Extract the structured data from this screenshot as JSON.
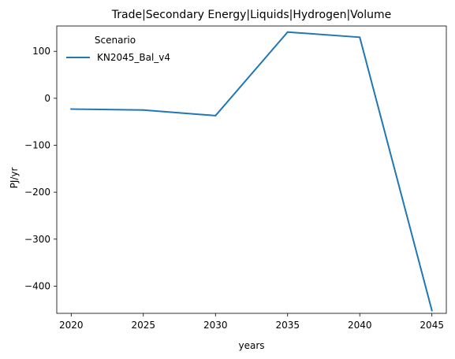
{
  "chart_data": {
    "type": "line",
    "title": "Trade|Secondary Energy|Liquids|Hydrogen|Volume",
    "xlabel": "years",
    "ylabel": "PJ/yr",
    "x": [
      2020,
      2025,
      2030,
      2035,
      2040,
      2045
    ],
    "x_ticks": [
      "2020",
      "2025",
      "2030",
      "2035",
      "2040",
      "2045"
    ],
    "y_ticks": [
      "100",
      "0",
      "−100",
      "−200",
      "−300",
      "−400"
    ],
    "y_tick_values": [
      100,
      0,
      -100,
      -200,
      -300,
      -400
    ],
    "xlim": [
      2019,
      2046
    ],
    "ylim": [
      -458,
      154
    ],
    "grid": false,
    "legend": {
      "title": "Scenario",
      "placement": "top-left"
    },
    "series": [
      {
        "name": "KN2045_Bal_v4",
        "color": "#1f77b4",
        "values": [
          -23,
          -25,
          -37,
          141,
          130,
          -452
        ]
      }
    ]
  }
}
